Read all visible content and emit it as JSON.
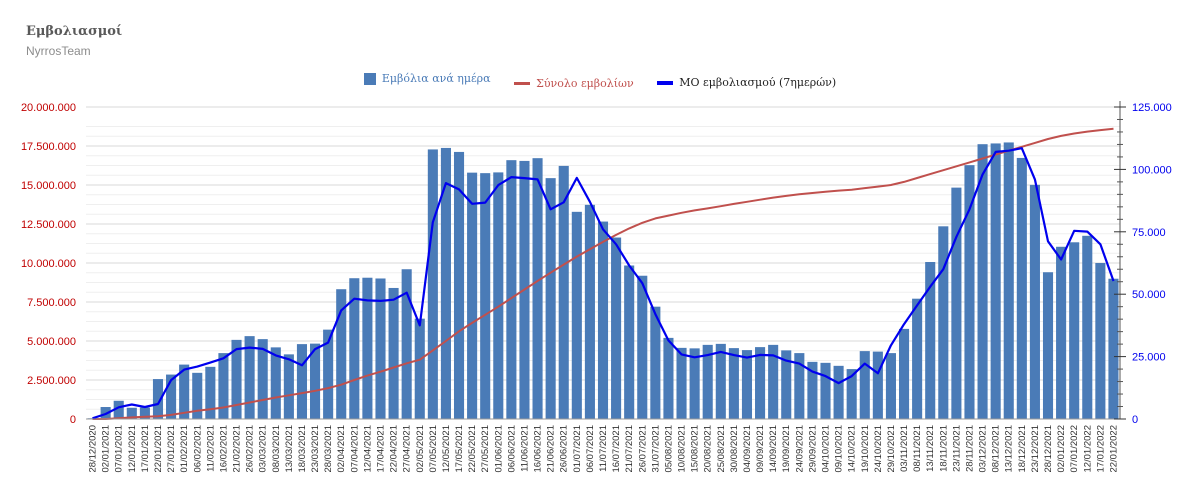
{
  "header": {
    "title": "Εμβολιασμοί",
    "subtitle": "NyrrosTeam"
  },
  "legend": [
    {
      "label": "Εμβόλια ανά ημέρα",
      "color": "#4a7bb7",
      "kind": "bar"
    },
    {
      "label": "Σύνολο εμβολίων",
      "color": "#c0504d",
      "kind": "line"
    },
    {
      "label": "ΜΟ εμβολιασμού (7ημερών)",
      "color": "#0000ee",
      "kind": "line"
    }
  ],
  "chart_data": {
    "type": "bar",
    "bar_color": "#4a7bb7",
    "total_color": "#c0504d",
    "avg_color": "#0000ee",
    "left_tick_color": "#c00000",
    "right_tick_color": "#0000ee",
    "grid": true,
    "legend_position": "top-center",
    "y_left": {
      "lim": [
        0,
        20000000
      ],
      "ticks": [
        0,
        2500000,
        5000000,
        7500000,
        10000000,
        12500000,
        15000000,
        17500000,
        20000000
      ],
      "tick_labels": [
        "0",
        "2.500.000",
        "5.000.000",
        "7.500.000",
        "10.000.000",
        "12.500.000",
        "15.000.000",
        "17.500.000",
        "20.000.000"
      ]
    },
    "y_right": {
      "lim": [
        0,
        125000
      ],
      "ticks": [
        0,
        25000,
        50000,
        75000,
        100000,
        125000
      ],
      "tick_labels": [
        "0",
        "25.000",
        "50.000",
        "75.000",
        "100.000",
        "125.000"
      ]
    },
    "x_labels": [
      "28/12/2020",
      "02/01/2021",
      "07/01/2021",
      "12/01/2021",
      "17/01/2021",
      "22/01/2021",
      "27/01/2021",
      "01/02/2021",
      "06/02/2021",
      "11/02/2021",
      "16/02/2021",
      "21/02/2021",
      "26/02/2021",
      "03/03/2021",
      "08/03/2021",
      "13/03/2021",
      "18/03/2021",
      "23/03/2021",
      "28/03/2021",
      "02/04/2021",
      "07/04/2021",
      "12/04/2021",
      "17/04/2021",
      "22/04/2021",
      "27/04/2021",
      "02/05/2021",
      "07/05/2021",
      "12/05/2021",
      "17/05/2021",
      "22/05/2021",
      "27/05/2021",
      "01/06/2021",
      "06/06/2021",
      "11/06/2021",
      "16/06/2021",
      "21/06/2021",
      "26/06/2021",
      "01/07/2021",
      "06/07/2021",
      "11/07/2021",
      "16/07/2021",
      "21/07/2021",
      "26/07/2021",
      "31/07/2021",
      "05/08/2021",
      "10/08/2021",
      "15/08/2021",
      "20/08/2021",
      "25/08/2021",
      "30/08/2021",
      "04/09/2021",
      "09/09/2021",
      "14/09/2021",
      "19/09/2021",
      "24/09/2021",
      "29/09/2021",
      "04/10/2021",
      "09/10/2021",
      "14/10/2021",
      "19/10/2021",
      "24/10/2021",
      "29/10/2021",
      "03/11/2021",
      "08/11/2021",
      "13/11/2021",
      "18/11/2021",
      "23/11/2021",
      "28/11/2021",
      "03/12/2021",
      "08/12/2021",
      "13/12/2021",
      "18/12/2021",
      "23/12/2021",
      "28/12/2021",
      "02/01/2022",
      "07/01/2022",
      "12/01/2022",
      "17/01/2022",
      "22/01/2022"
    ],
    "series": [
      {
        "name": "Εμβόλια ανά ημέρα",
        "axis": "right",
        "kind": "bar",
        "note": "daily values approximated per 5-day period",
        "values": [
          300,
          4800,
          7300,
          4500,
          4600,
          16000,
          17800,
          21800,
          18500,
          20900,
          26400,
          31700,
          33200,
          32000,
          28700,
          25900,
          30000,
          30200,
          35800,
          52000,
          56400,
          56600,
          56300,
          52500,
          60000,
          40200,
          108000,
          108600,
          107000,
          98700,
          98500,
          98800,
          103700,
          103400,
          104500,
          96500,
          101400,
          83000,
          85800,
          79100,
          72700,
          61500,
          57400,
          45000,
          32500,
          28500,
          28300,
          29700,
          30100,
          28400,
          27600,
          28800,
          29700,
          27500,
          26400,
          22900,
          22500,
          21300,
          20000,
          27200,
          27000,
          26400,
          36100,
          48200,
          62900,
          77200,
          92700,
          101700,
          110100,
          110400,
          110800,
          104600,
          93800,
          58800,
          69000,
          70800,
          73400,
          62500,
          56200
        ]
      },
      {
        "name": "Σύνολο εμβολίων",
        "axis": "left",
        "kind": "line",
        "values": [
          0,
          2000,
          45000,
          100000,
          145000,
          175000,
          260000,
          400000,
          525000,
          630000,
          740000,
          900000,
          1060000,
          1220000,
          1380000,
          1520000,
          1660000,
          1810000,
          1980000,
          2200000,
          2500000,
          2780000,
          3030000,
          3300000,
          3570000,
          3800000,
          4400000,
          5000000,
          5620000,
          6160000,
          6680000,
          7200000,
          7750000,
          8300000,
          8850000,
          9380000,
          9900000,
          10410000,
          10880000,
          11350000,
          11800000,
          12220000,
          12580000,
          12860000,
          13040000,
          13220000,
          13370000,
          13500000,
          13640000,
          13790000,
          13920000,
          14060000,
          14190000,
          14300000,
          14410000,
          14490000,
          14570000,
          14640000,
          14700000,
          14800000,
          14900000,
          15000000,
          15200000,
          15450000,
          15700000,
          15950000,
          16200000,
          16450000,
          16700000,
          16950000,
          17200000,
          17450000,
          17700000,
          17950000,
          18150000,
          18300000,
          18420000,
          18520000,
          18600000
        ]
      },
      {
        "name": "ΜΟ εμβολιασμού (7ημερών)",
        "axis": "right",
        "kind": "line",
        "values": [
          300,
          2000,
          4700,
          5800,
          4800,
          6000,
          15600,
          19800,
          21000,
          22600,
          24300,
          28000,
          28600,
          28100,
          25500,
          23900,
          21500,
          28000,
          30600,
          43500,
          48200,
          47500,
          47300,
          47800,
          50600,
          37500,
          78800,
          94500,
          92000,
          86200,
          86700,
          93700,
          96900,
          96500,
          96000,
          84000,
          86800,
          96600,
          87000,
          76000,
          70000,
          61500,
          54400,
          42000,
          31500,
          25900,
          24700,
          25600,
          26900,
          25600,
          24600,
          25700,
          25500,
          23400,
          22200,
          19000,
          17200,
          14400,
          17200,
          22200,
          18300,
          29500,
          38000,
          45500,
          53000,
          60000,
          73000,
          84000,
          98000,
          107000,
          107500,
          108500,
          96000,
          71200,
          63900,
          75400,
          75100,
          70000,
          55300
        ]
      }
    ]
  }
}
